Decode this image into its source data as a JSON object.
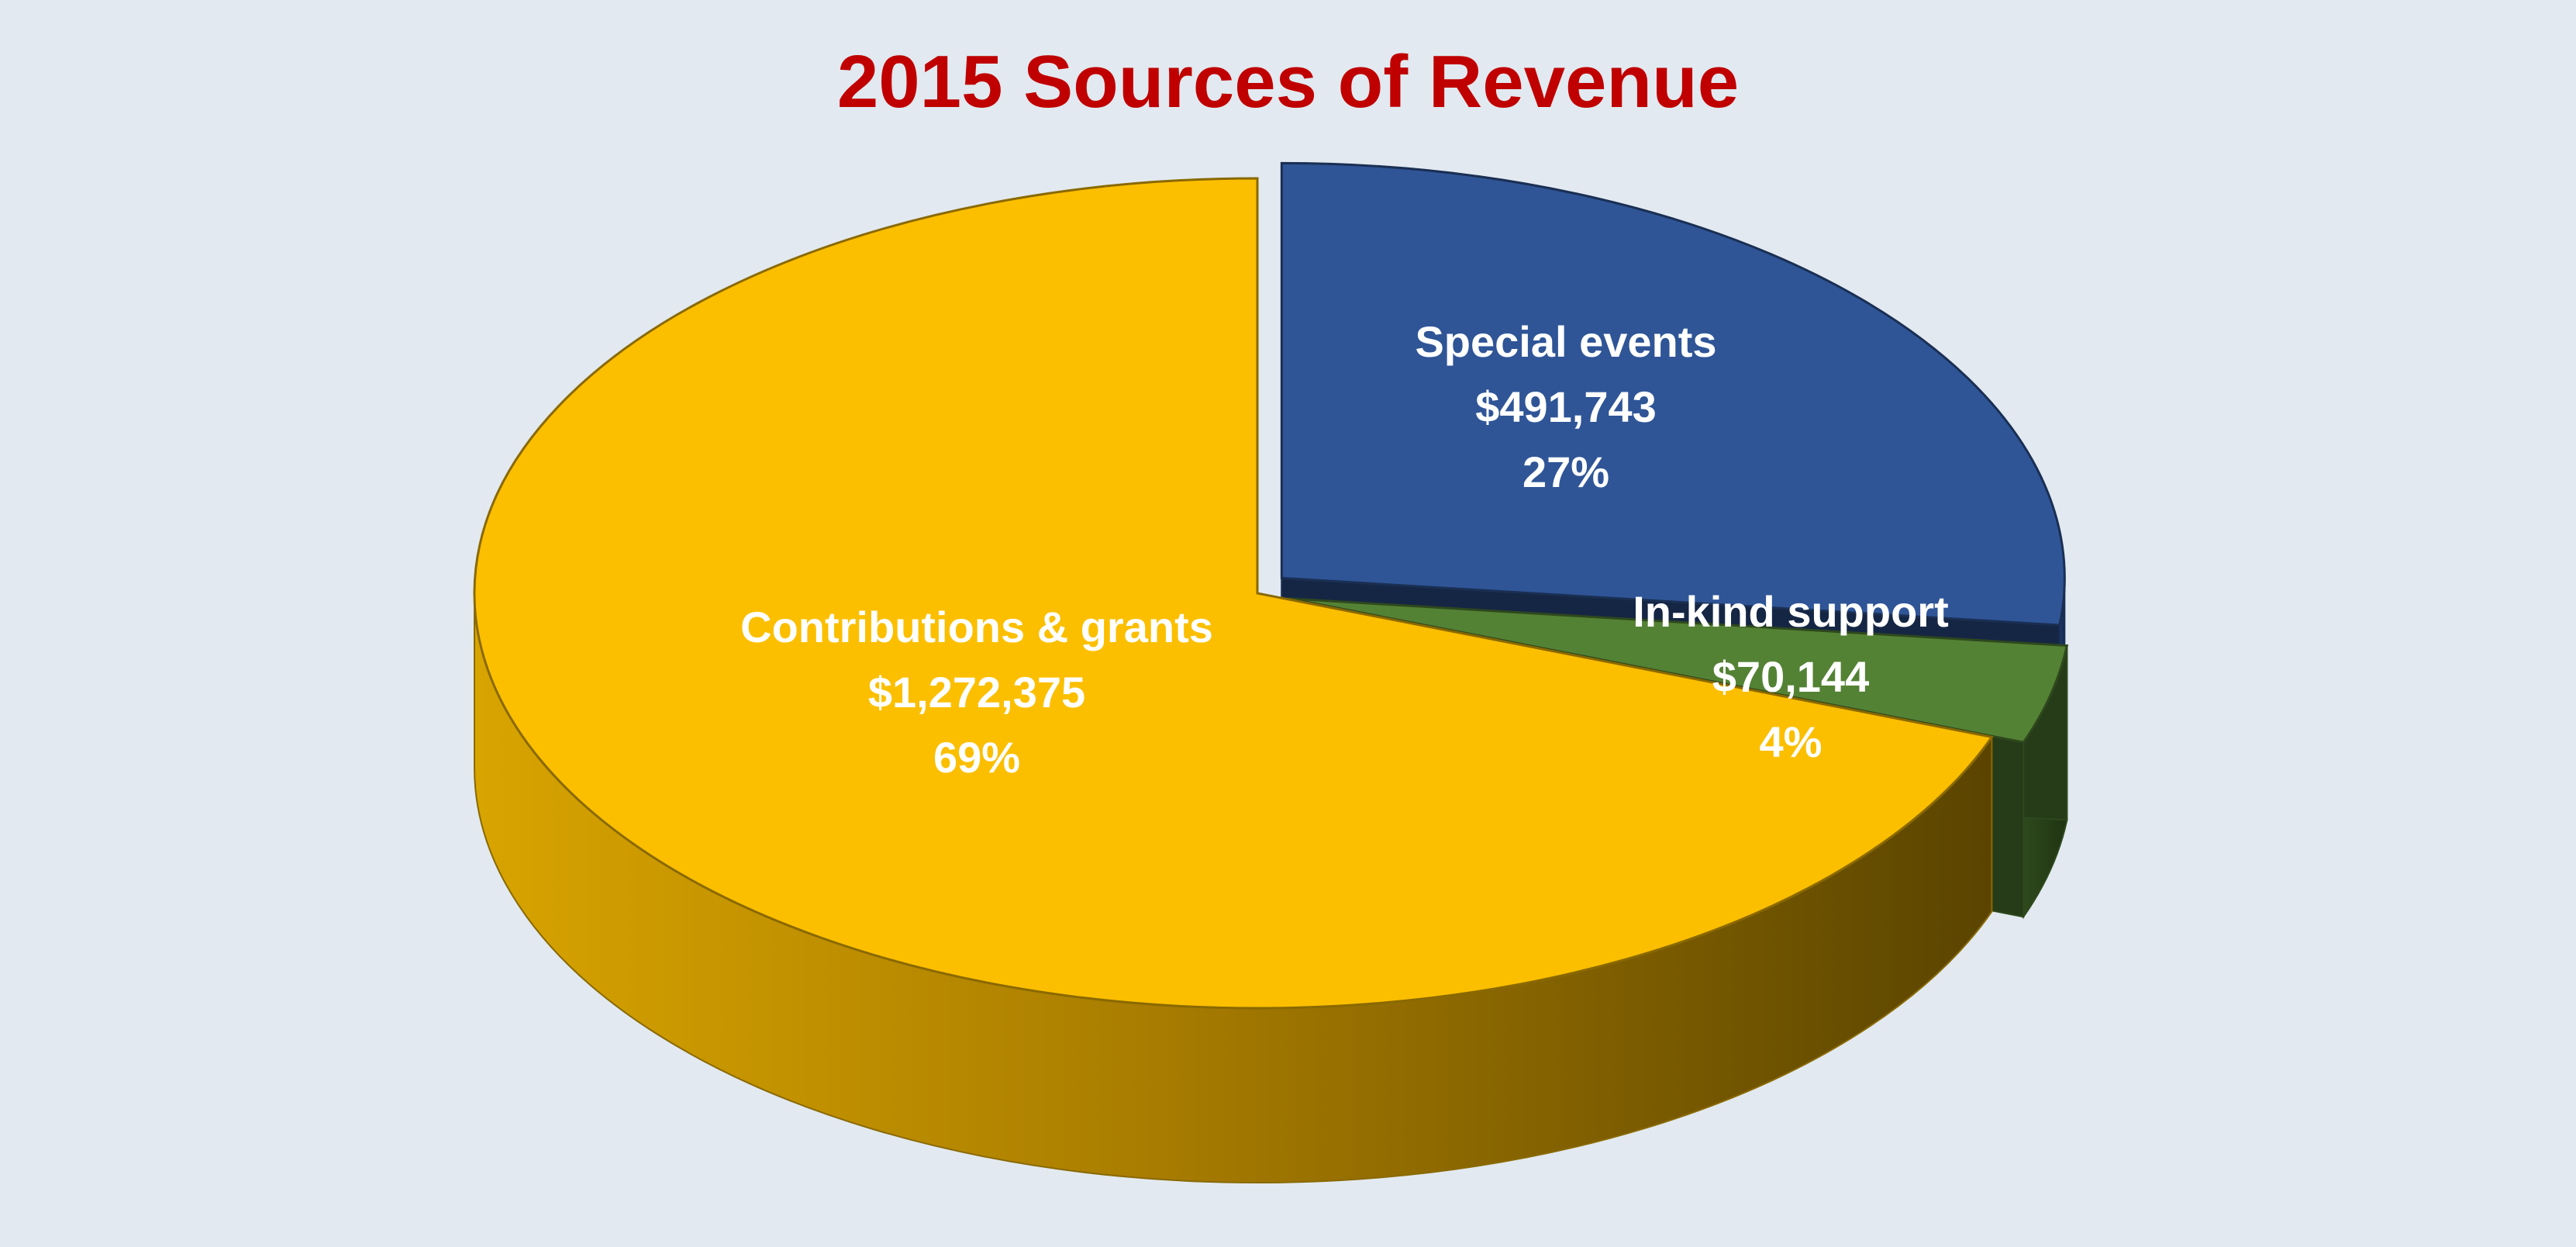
{
  "chart_data": {
    "type": "pie",
    "style": "3d",
    "title": "2015 Sources of Revenue",
    "title_color": "#c00000",
    "background_color": "#e2e9f0",
    "legend": "none",
    "slices": [
      {
        "label": "Special events",
        "value": 491743,
        "value_label": "$491,743",
        "percent_label": "27%",
        "color": "#2f5597",
        "exploded": true
      },
      {
        "label": "In-kind support",
        "value": 70144,
        "value_label": "$70,144",
        "percent_label": "4%",
        "color": "#548235",
        "exploded": true
      },
      {
        "label": "Contributions & grants",
        "value": 1272375,
        "value_label": "$1,272,375",
        "percent_label": "69%",
        "color": "#fbbf00",
        "exploded": false
      }
    ]
  }
}
